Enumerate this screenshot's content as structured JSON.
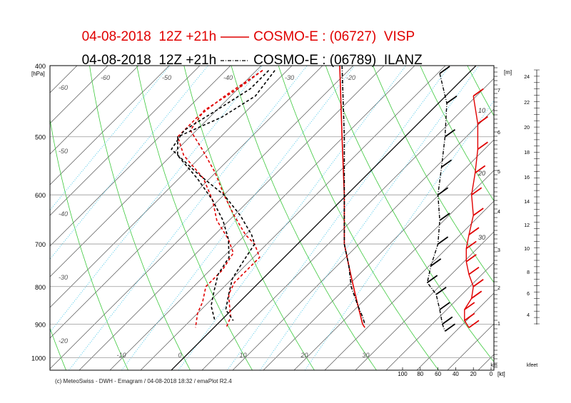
{
  "titles": [
    {
      "date": "04-08-2018",
      "run": "12Z +21h",
      "model": "COSMO-E : (06727)",
      "station": "VISP",
      "color": "#e00000"
    },
    {
      "date": "04-08-2018",
      "run": "12Z +21h",
      "model": "COSMO-E : (06789)",
      "station": "ILANZ",
      "color": "#000000"
    }
  ],
  "footer": "(c) MeteoSwiss - DWH - Emagram / 04-08-2018  18:32 / emaPlot R2.4",
  "axis_labels": {
    "pressure_unit": "[hPa]",
    "height_unit": "[m]",
    "km": "km",
    "kt": "[kt]",
    "kfeet": "kfeet"
  },
  "chart_data": {
    "type": "line",
    "subtype": "emagram",
    "pressure_ticks": [
      400,
      500,
      600,
      700,
      800,
      900,
      1000
    ],
    "temperature_ticks": [
      -60,
      -50,
      -40,
      -30,
      -20,
      -10,
      0,
      10,
      20,
      30
    ],
    "upper_temperature_labels": [
      "-60",
      "-50",
      "-40",
      "-30",
      "-20"
    ],
    "left_temperature_labels": [
      "-60",
      "-50",
      "-40",
      "-30",
      "-20"
    ],
    "bottom_temperature_labels": [
      "-10",
      "0",
      "10",
      "20",
      "30"
    ],
    "mixing_ratio_labels": [
      "7",
      "6",
      "5",
      "4",
      "3",
      "2",
      "1"
    ],
    "height_labels": [
      "10",
      "20",
      "30"
    ],
    "wind_speed_ticks": [
      "100",
      "80",
      "60",
      "40",
      "20",
      "0"
    ],
    "kfeet_ticks": [
      "24",
      "22",
      "20",
      "18",
      "16",
      "14",
      "12",
      "10",
      "8",
      "6",
      "4"
    ],
    "series": [
      {
        "name": "VISP",
        "color": "#e00000",
        "kind": "temperature",
        "points": [
          [
            406,
            -34
          ],
          [
            430,
            -35
          ],
          [
            460,
            -37
          ],
          [
            490,
            -36
          ],
          [
            520,
            -31
          ],
          [
            560,
            -25
          ],
          [
            600,
            -20
          ],
          [
            640,
            -15
          ],
          [
            680,
            -10
          ],
          [
            700,
            -7
          ],
          [
            730,
            -4
          ],
          [
            760,
            -4
          ],
          [
            790,
            -4
          ],
          [
            820,
            -3
          ],
          [
            850,
            -1
          ],
          [
            880,
            1
          ],
          [
            910,
            2
          ]
        ]
      },
      {
        "name": "VISP",
        "color": "#e00000",
        "kind": "dewpoint",
        "points": [
          [
            406,
            -34
          ],
          [
            440,
            -36
          ],
          [
            470,
            -37
          ],
          [
            500,
            -37
          ],
          [
            530,
            -33
          ],
          [
            570,
            -26
          ],
          [
            610,
            -21
          ],
          [
            650,
            -17
          ],
          [
            690,
            -12
          ],
          [
            720,
            -9
          ],
          [
            760,
            -8
          ],
          [
            800,
            -8
          ],
          [
            840,
            -6
          ],
          [
            870,
            -5
          ],
          [
            910,
            -3
          ]
        ]
      },
      {
        "name": "ILANZ",
        "color": "#000000",
        "kind": "temperature",
        "points": [
          [
            406,
            -33
          ],
          [
            430,
            -33
          ],
          [
            460,
            -35
          ],
          [
            490,
            -37
          ],
          [
            520,
            -36
          ],
          [
            560,
            -28
          ],
          [
            600,
            -20
          ],
          [
            640,
            -14
          ],
          [
            680,
            -9
          ],
          [
            700,
            -7
          ],
          [
            740,
            -6
          ],
          [
            780,
            -5
          ],
          [
            820,
            -3
          ],
          [
            860,
            -1
          ],
          [
            890,
            2
          ]
        ]
      },
      {
        "name": "ILANZ",
        "color": "#000000",
        "kind": "dewpoint",
        "points": [
          [
            406,
            -32
          ],
          [
            440,
            -31
          ],
          [
            470,
            -33
          ],
          [
            500,
            -37
          ],
          [
            530,
            -34
          ],
          [
            570,
            -27
          ],
          [
            610,
            -21
          ],
          [
            650,
            -16
          ],
          [
            690,
            -12
          ],
          [
            730,
            -9
          ],
          [
            770,
            -8
          ],
          [
            810,
            -6
          ],
          [
            850,
            -4
          ],
          [
            890,
            -1
          ]
        ]
      },
      {
        "name": "VISP",
        "color": "#e00000",
        "kind": "reference",
        "points": [
          [
            400,
            5
          ],
          [
            500,
            6
          ],
          [
            600,
            7
          ],
          [
            650,
            7
          ],
          [
            700,
            7
          ],
          [
            750,
            9
          ],
          [
            800,
            11
          ],
          [
            850,
            13
          ],
          [
            900,
            15
          ],
          [
            910,
            16
          ]
        ]
      },
      {
        "name": "ILANZ",
        "color": "#000000",
        "kind": "reference",
        "points": [
          [
            400,
            6
          ],
          [
            500,
            7
          ],
          [
            600,
            7
          ],
          [
            650,
            7
          ],
          [
            700,
            7
          ],
          [
            750,
            9
          ],
          [
            800,
            10
          ],
          [
            850,
            13
          ],
          [
            880,
            15
          ],
          [
            900,
            16
          ]
        ]
      }
    ],
    "wind_profile_visp": [
      {
        "p": 440,
        "spd": 20
      },
      {
        "p": 480,
        "spd": 15
      },
      {
        "p": 520,
        "spd": 15
      },
      {
        "p": 560,
        "spd": 18
      },
      {
        "p": 600,
        "spd": 22
      },
      {
        "p": 640,
        "spd": 20
      },
      {
        "p": 680,
        "spd": 25
      },
      {
        "p": 710,
        "spd": 28
      },
      {
        "p": 740,
        "spd": 28
      },
      {
        "p": 770,
        "spd": 25
      },
      {
        "p": 800,
        "spd": 20
      },
      {
        "p": 830,
        "spd": 22
      },
      {
        "p": 860,
        "spd": 30
      },
      {
        "p": 890,
        "spd": 30
      },
      {
        "p": 910,
        "spd": 25
      }
    ],
    "wind_profile_ilanz": [
      {
        "p": 410,
        "spd": 58
      },
      {
        "p": 450,
        "spd": 50
      },
      {
        "p": 500,
        "spd": 52
      },
      {
        "p": 550,
        "spd": 56
      },
      {
        "p": 600,
        "spd": 60
      },
      {
        "p": 650,
        "spd": 58
      },
      {
        "p": 700,
        "spd": 60
      },
      {
        "p": 750,
        "spd": 68
      },
      {
        "p": 790,
        "spd": 72
      },
      {
        "p": 820,
        "spd": 62
      },
      {
        "p": 860,
        "spd": 58
      },
      {
        "p": 900,
        "spd": 55
      },
      {
        "p": 920,
        "spd": 52
      }
    ],
    "xlim": [
      -70,
      40
    ],
    "ylim": [
      400,
      1040
    ]
  }
}
